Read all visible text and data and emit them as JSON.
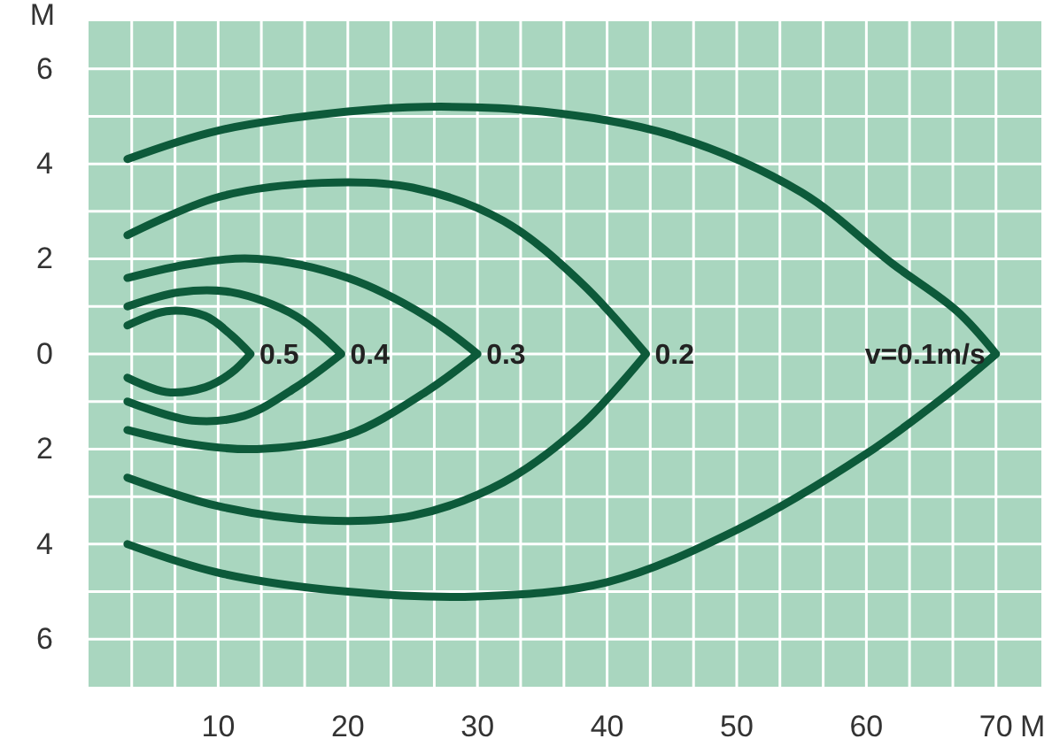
{
  "chart_data": {
    "type": "line",
    "xlabel": "M",
    "ylabel": "M",
    "xlim": [
      0,
      73.5
    ],
    "ylim": [
      -7,
      7
    ],
    "xticks": [
      {
        "value": 3.33,
        "label": null
      },
      {
        "value": 6.67,
        "label": null
      },
      10,
      {
        "value": 13.33,
        "label": null
      },
      {
        "value": 16.67,
        "label": null
      },
      20,
      {
        "value": 23.33,
        "label": null
      },
      {
        "value": 26.67,
        "label": null
      },
      30,
      {
        "value": 33.33,
        "label": null
      },
      {
        "value": 36.67,
        "label": null
      },
      40,
      {
        "value": 43.33,
        "label": null
      },
      {
        "value": 46.67,
        "label": null
      },
      50,
      {
        "value": 53.33,
        "label": null
      },
      {
        "value": 56.67,
        "label": null
      },
      60,
      {
        "value": 63.33,
        "label": null
      },
      {
        "value": 66.67,
        "label": null
      },
      70
    ],
    "yticks": [
      {
        "value": 6,
        "label": "6"
      },
      {
        "value": 5,
        "label": null
      },
      4,
      {
        "value": 3,
        "label": null
      },
      2,
      {
        "value": 1,
        "label": null
      },
      0,
      {
        "value": -1,
        "label": null
      },
      {
        "value": -2,
        "label": "2"
      },
      {
        "value": -3,
        "label": null
      },
      {
        "value": -4,
        "label": "4"
      },
      {
        "value": -5,
        "label": null
      },
      {
        "value": -6,
        "label": "6"
      }
    ],
    "grid": true,
    "legend": false,
    "marker": "none",
    "line_style": "solid",
    "series": [
      {
        "name": "0.5",
        "color": "#0d5a3a",
        "x": [
          3,
          6,
          9,
          11,
          12.5,
          11,
          9,
          6,
          3
        ],
        "values": [
          0.6,
          0.9,
          0.8,
          0.4,
          0,
          -0.4,
          -0.7,
          -0.8,
          -0.5
        ]
      },
      {
        "name": "0.4",
        "color": "#0d5a3a",
        "x": [
          3,
          7,
          11,
          16,
          19.5,
          16,
          12,
          8,
          3
        ],
        "values": [
          1.0,
          1.3,
          1.3,
          0.8,
          0,
          -0.7,
          -1.3,
          -1.4,
          -1.0
        ]
      },
      {
        "name": "0.3",
        "color": "#0d5a3a",
        "x": [
          3,
          8,
          13,
          20,
          26,
          30,
          26,
          20,
          13,
          8,
          3
        ],
        "values": [
          1.6,
          1.9,
          2.0,
          1.6,
          0.8,
          0,
          -0.8,
          -1.7,
          -2.0,
          -1.9,
          -1.6
        ]
      },
      {
        "name": "0.2",
        "color": "#0d5a3a",
        "x": [
          3,
          10,
          18,
          25,
          32,
          38,
          43,
          38,
          32,
          25,
          18,
          10,
          3
        ],
        "values": [
          2.5,
          3.3,
          3.6,
          3.5,
          2.8,
          1.5,
          0,
          -1.5,
          -2.7,
          -3.4,
          -3.5,
          -3.2,
          -2.6
        ]
      },
      {
        "name": "v=0.1m/s",
        "color": "#0d5a3a",
        "x": [
          3,
          10,
          20,
          26,
          35,
          45,
          55,
          62,
          67,
          70,
          66,
          60,
          50,
          40,
          30,
          20,
          10,
          3
        ],
        "values": [
          4.1,
          4.7,
          5.1,
          5.2,
          5.1,
          4.6,
          3.4,
          1.9,
          0.9,
          0,
          -0.9,
          -2.1,
          -3.7,
          -4.8,
          -5.1,
          -5.0,
          -4.6,
          -4.0
        ]
      }
    ]
  }
}
